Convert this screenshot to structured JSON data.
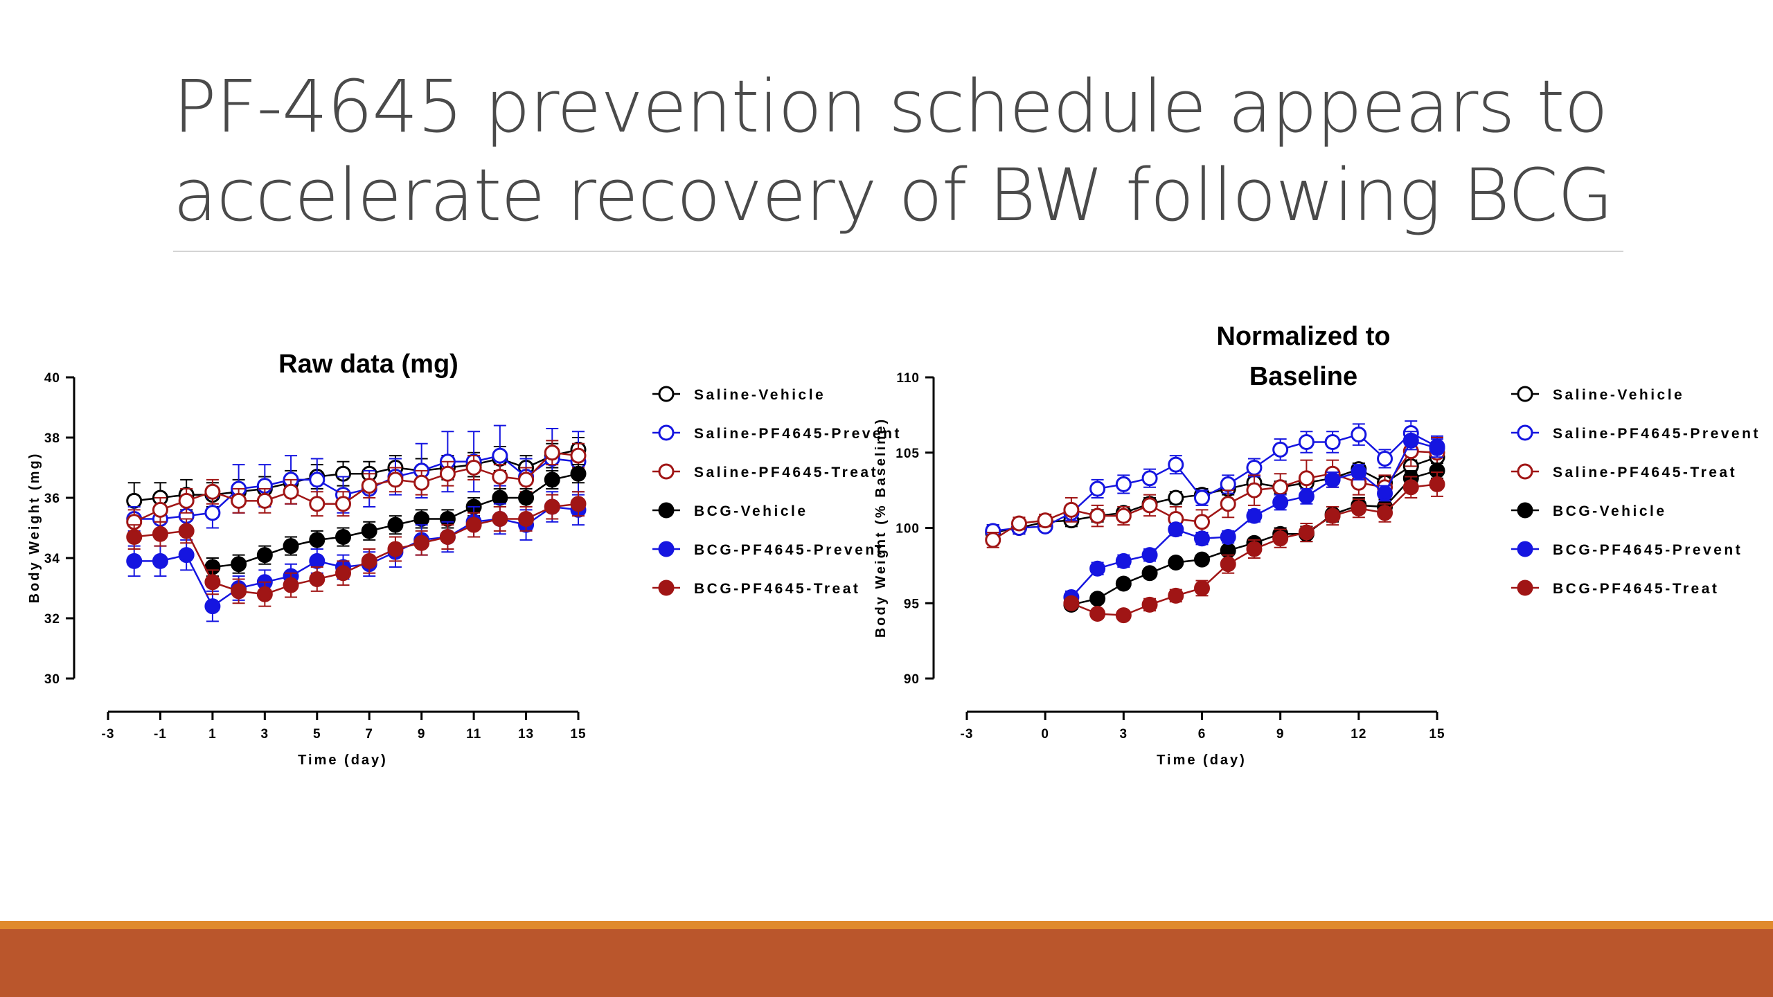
{
  "slide": {
    "title_line1": "PF-4645 prevention schedule appears to",
    "title_line2": "accelerate recovery of BW following BCG"
  },
  "colors": {
    "black": "#000000",
    "blue": "#1515e0",
    "red": "#a01515",
    "bar_main": "#ba562c",
    "bar_accent": "#e08a2c"
  },
  "chart_data": [
    {
      "type": "line",
      "title": "Raw data (mg)",
      "xlabel": "Time (day)",
      "ylabel": "Body Weight (mg)",
      "xlim": [
        -3,
        15
      ],
      "ylim": [
        30,
        40
      ],
      "xticks": [
        -3,
        -1,
        1,
        3,
        5,
        7,
        9,
        11,
        13,
        15
      ],
      "yticks": [
        30,
        32,
        34,
        36,
        38,
        40
      ],
      "legend": "right",
      "x": [
        -2,
        -1,
        0,
        1,
        2,
        3,
        4,
        5,
        6,
        7,
        8,
        9,
        10,
        11,
        12,
        13,
        14,
        15
      ],
      "series": [
        {
          "name": "Saline-Vehicle",
          "color": "#000000",
          "filled": false,
          "values": [
            35.9,
            36.0,
            36.1,
            36.1,
            36.2,
            36.3,
            36.5,
            36.7,
            36.8,
            36.8,
            37.0,
            36.9,
            37.0,
            37.1,
            37.3,
            37.0,
            37.4,
            37.6
          ],
          "err": [
            0.6,
            0.5,
            0.5,
            0.4,
            0.4,
            0.4,
            0.4,
            0.4,
            0.4,
            0.4,
            0.4,
            0.4,
            0.4,
            0.4,
            0.4,
            0.4,
            0.4,
            0.4
          ]
        },
        {
          "name": "Saline-PF4645-Prevent",
          "color": "#1515e0",
          "filled": false,
          "values": [
            35.3,
            35.3,
            35.4,
            35.5,
            36.3,
            36.4,
            36.6,
            36.6,
            36.1,
            36.3,
            36.7,
            36.9,
            37.2,
            37.2,
            37.4,
            36.7,
            37.3,
            37.2
          ],
          "err": [
            0.4,
            0.4,
            0.4,
            0.5,
            0.8,
            0.7,
            0.8,
            0.7,
            0.6,
            0.6,
            0.6,
            0.9,
            1.0,
            1.0,
            1.0,
            0.6,
            1.0,
            1.0
          ]
        },
        {
          "name": "Saline-PF4645-Treat",
          "color": "#a01515",
          "filled": false,
          "values": [
            35.2,
            35.6,
            35.9,
            36.2,
            35.9,
            35.9,
            36.2,
            35.8,
            35.8,
            36.4,
            36.6,
            36.5,
            36.8,
            37.0,
            36.7,
            36.6,
            37.5,
            37.4
          ],
          "err": [
            0.4,
            0.4,
            0.4,
            0.4,
            0.4,
            0.4,
            0.4,
            0.4,
            0.4,
            0.4,
            0.4,
            0.4,
            0.4,
            0.4,
            0.4,
            0.4,
            0.4,
            0.4
          ]
        },
        {
          "name": "BCG-Vehicle",
          "color": "#000000",
          "filled": true,
          "values": [
            null,
            null,
            null,
            33.7,
            33.8,
            34.1,
            34.4,
            34.6,
            34.7,
            34.9,
            35.1,
            35.3,
            35.3,
            35.7,
            36.0,
            36.0,
            36.6,
            36.8
          ],
          "err": [
            0,
            0,
            0,
            0.3,
            0.3,
            0.3,
            0.3,
            0.3,
            0.3,
            0.3,
            0.3,
            0.3,
            0.3,
            0.3,
            0.3,
            0.3,
            0.3,
            0.3
          ]
        },
        {
          "name": "BCG-PF4645-Prevent",
          "color": "#1515e0",
          "filled": true,
          "values": [
            33.9,
            33.9,
            34.1,
            32.4,
            33.0,
            33.2,
            33.4,
            33.9,
            33.7,
            33.8,
            34.2,
            34.6,
            34.7,
            35.2,
            35.3,
            35.1,
            35.7,
            35.6
          ],
          "err": [
            0.5,
            0.5,
            0.5,
            0.5,
            0.4,
            0.4,
            0.4,
            0.4,
            0.4,
            0.4,
            0.5,
            0.5,
            0.5,
            0.5,
            0.5,
            0.5,
            0.5,
            0.5
          ]
        },
        {
          "name": "BCG-PF4645-Treat",
          "color": "#a01515",
          "filled": true,
          "values": [
            34.7,
            34.8,
            34.9,
            33.2,
            32.9,
            32.8,
            33.1,
            33.3,
            33.5,
            33.9,
            34.3,
            34.5,
            34.7,
            35.1,
            35.3,
            35.3,
            35.7,
            35.8
          ],
          "err": [
            0.4,
            0.4,
            0.4,
            0.4,
            0.4,
            0.4,
            0.4,
            0.4,
            0.4,
            0.4,
            0.4,
            0.4,
            0.4,
            0.4,
            0.4,
            0.4,
            0.4,
            0.4
          ]
        }
      ]
    },
    {
      "type": "line",
      "title": "Normalized to Baseline",
      "title_lines": [
        "Normalized to",
        "Baseline"
      ],
      "xlabel": "Time (day)",
      "ylabel": "Body Weight (% Baseline)",
      "xlim": [
        -3,
        15
      ],
      "ylim": [
        90,
        110
      ],
      "xticks": [
        -3,
        0,
        3,
        6,
        9,
        12,
        15
      ],
      "yticks": [
        90,
        95,
        100,
        105,
        110
      ],
      "legend": "right",
      "x": [
        -2,
        -1,
        0,
        1,
        2,
        3,
        4,
        5,
        6,
        7,
        8,
        9,
        10,
        11,
        12,
        13,
        14,
        15
      ],
      "series": [
        {
          "name": "Saline-Vehicle",
          "color": "#000000",
          "filled": false,
          "values": [
            99.7,
            100.0,
            100.4,
            100.5,
            100.8,
            101.0,
            101.6,
            102.0,
            102.2,
            102.6,
            103.0,
            102.7,
            103.0,
            103.3,
            103.9,
            103.0,
            104.1,
            104.7
          ],
          "err": [
            0.5,
            0.4,
            0.3,
            0.4,
            0.4,
            0.4,
            0.4,
            0.4,
            0.4,
            0.4,
            0.4,
            0.4,
            0.4,
            0.4,
            0.4,
            0.4,
            0.4,
            0.4
          ]
        },
        {
          "name": "Saline-PF4645-Prevent",
          "color": "#1515e0",
          "filled": false,
          "values": [
            99.8,
            100.0,
            100.1,
            101.0,
            102.6,
            102.9,
            103.3,
            104.2,
            102.0,
            102.9,
            104.0,
            105.2,
            105.7,
            105.7,
            106.2,
            104.6,
            106.3,
            105.4
          ],
          "err": [
            0.4,
            0.4,
            0.3,
            0.5,
            0.6,
            0.6,
            0.6,
            0.6,
            0.5,
            0.6,
            0.6,
            0.7,
            0.7,
            0.7,
            0.7,
            0.6,
            0.8,
            0.7
          ]
        },
        {
          "name": "Saline-PF4645-Treat",
          "color": "#a01515",
          "filled": false,
          "values": [
            99.2,
            100.3,
            100.5,
            101.2,
            100.8,
            100.8,
            101.5,
            100.6,
            100.4,
            101.6,
            102.5,
            102.7,
            103.3,
            103.6,
            103.0,
            102.7,
            105.1,
            105.0
          ],
          "err": [
            0.5,
            0.4,
            0.4,
            0.8,
            0.7,
            0.6,
            0.7,
            0.8,
            0.8,
            0.9,
            1.0,
            0.9,
            1.2,
            0.9,
            0.8,
            0.8,
            1.0,
            1.0
          ]
        },
        {
          "name": "BCG-Vehicle",
          "color": "#000000",
          "filled": true,
          "values": [
            null,
            null,
            null,
            94.9,
            95.3,
            96.3,
            97.0,
            97.7,
            97.9,
            98.5,
            99.0,
            99.6,
            99.6,
            100.9,
            101.5,
            101.4,
            103.3,
            103.8
          ],
          "err": [
            0,
            0,
            0,
            0.3,
            0.3,
            0.3,
            0.3,
            0.3,
            0.3,
            0.3,
            0.3,
            0.4,
            0.5,
            0.5,
            0.5,
            0.5,
            0.5,
            0.5
          ]
        },
        {
          "name": "BCG-PF4645-Prevent",
          "color": "#1515e0",
          "filled": true,
          "values": [
            null,
            null,
            null,
            95.4,
            97.3,
            97.8,
            98.2,
            99.9,
            99.3,
            99.4,
            100.8,
            101.7,
            102.1,
            103.2,
            103.7,
            102.3,
            105.8,
            105.3
          ],
          "err": [
            0,
            0,
            0,
            0.4,
            0.4,
            0.4,
            0.4,
            0.4,
            0.4,
            0.4,
            0.4,
            0.5,
            0.5,
            0.5,
            0.5,
            0.5,
            0.6,
            0.6
          ]
        },
        {
          "name": "BCG-PF4645-Treat",
          "color": "#a01515",
          "filled": true,
          "values": [
            null,
            null,
            null,
            95.0,
            94.3,
            94.2,
            94.9,
            95.5,
            96.0,
            97.6,
            98.6,
            99.3,
            99.7,
            100.8,
            101.3,
            101.0,
            102.7,
            102.9
          ],
          "err": [
            0,
            0,
            0,
            0.3,
            0.3,
            0.3,
            0.4,
            0.4,
            0.5,
            0.6,
            0.6,
            0.6,
            0.6,
            0.6,
            0.6,
            0.6,
            0.7,
            0.8
          ]
        }
      ]
    }
  ]
}
